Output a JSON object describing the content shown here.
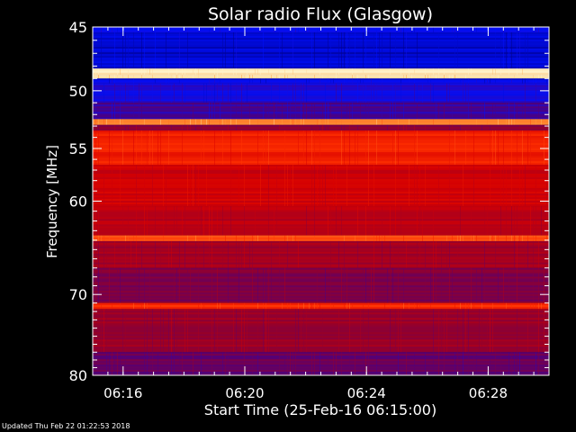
{
  "chart_data": {
    "type": "heatmap",
    "title": "Solar radio Flux (Glasgow)",
    "xlabel": "Start Time (25-Feb-16 06:15:00)",
    "ylabel": "Frequency [MHz]",
    "y_ticks": [
      45,
      50,
      55,
      60,
      70,
      80
    ],
    "y_range": [
      45,
      80
    ],
    "y_scale": "log",
    "x_ticks": [
      "06:16",
      "06:20",
      "06:24",
      "06:28"
    ],
    "x_range": [
      "06:15:00",
      "06:30:00"
    ],
    "colormap": [
      "#00008c",
      "#0010ff",
      "#50007a",
      "#96002a",
      "#d80000",
      "#ff3000",
      "#ff9f3c",
      "#fff2c8"
    ],
    "bands": [
      {
        "from": 45,
        "to": 45.4,
        "level": 0.15
      },
      {
        "from": 45.4,
        "to": 48.2,
        "level": 0.08
      },
      {
        "from": 48.2,
        "to": 48.7,
        "level": 1.0
      },
      {
        "from": 48.7,
        "to": 49.0,
        "level": 0.95
      },
      {
        "from": 49.0,
        "to": 49.4,
        "level": 0.12
      },
      {
        "from": 49.4,
        "to": 51.0,
        "level": 0.18
      },
      {
        "from": 51.0,
        "to": 52.4,
        "level": 0.25
      },
      {
        "from": 52.4,
        "to": 52.9,
        "level": 0.85
      },
      {
        "from": 52.9,
        "to": 53.4,
        "level": 0.4
      },
      {
        "from": 53.4,
        "to": 56.5,
        "level": 0.66
      },
      {
        "from": 56.5,
        "to": 60.5,
        "level": 0.55
      },
      {
        "from": 60.5,
        "to": 63.5,
        "level": 0.5
      },
      {
        "from": 63.5,
        "to": 64.1,
        "level": 0.75
      },
      {
        "from": 64.1,
        "to": 67.0,
        "level": 0.45
      },
      {
        "from": 67.0,
        "to": 71.0,
        "level": 0.38
      },
      {
        "from": 71.0,
        "to": 71.7,
        "level": 0.7
      },
      {
        "from": 71.7,
        "to": 77.0,
        "level": 0.44
      },
      {
        "from": 77.0,
        "to": 80.0,
        "level": 0.33
      }
    ]
  },
  "footer": {
    "updated": "Updated Thu Feb 22 01:22:53 2018"
  }
}
